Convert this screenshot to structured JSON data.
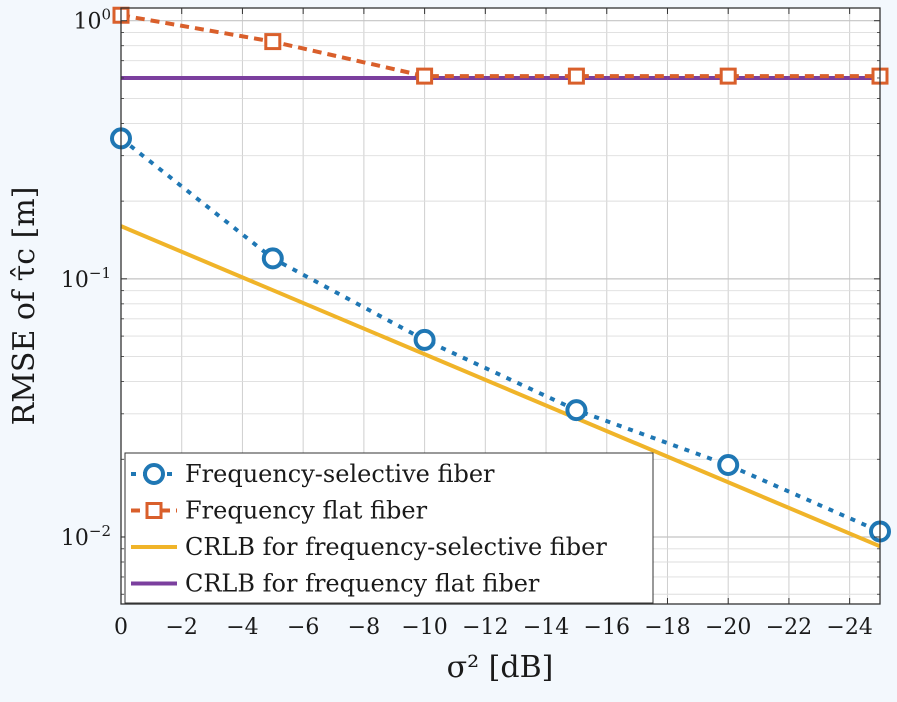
{
  "chart_data": {
    "type": "line",
    "title": "",
    "xlabel": "σ² [dB]",
    "ylabel": "RMSE of τ̂c [m]",
    "xlim": [
      0,
      -25
    ],
    "ylim": [
      0.0055,
      1.12
    ],
    "yscale": "log",
    "grid": true,
    "legend_position": "bottom-left",
    "x_ticks": [
      0,
      -2,
      -4,
      -6,
      -8,
      -10,
      -12,
      -14,
      -16,
      -18,
      -20,
      -22,
      -24
    ],
    "x_tick_labels": [
      "0",
      "−2",
      "−4",
      "−6",
      "−8",
      "−10",
      "−12",
      "−14",
      "−16",
      "−18",
      "−20",
      "−22",
      "−24"
    ],
    "y_ticks": [
      {
        "value": 1,
        "base": "10",
        "exp": "0"
      },
      {
        "value": 0.1,
        "base": "10",
        "exp": "−1"
      },
      {
        "value": 0.01,
        "base": "10",
        "exp": "−2"
      }
    ],
    "series": [
      {
        "name": "Frequency-selective fiber",
        "x": [
          0,
          -5,
          -10,
          -15,
          -20,
          -25
        ],
        "y": [
          0.35,
          0.12,
          0.058,
          0.031,
          0.019,
          0.0105
        ],
        "color": "#1f77b4",
        "style": "dotted",
        "marker": "circle"
      },
      {
        "name": "Frequency flat fiber",
        "x": [
          0,
          -5,
          -10,
          -15,
          -20,
          -25
        ],
        "y": [
          1.05,
          0.83,
          0.61,
          0.61,
          0.61,
          0.61
        ],
        "color": "#d95f2b",
        "style": "dashed",
        "marker": "square"
      },
      {
        "name": "CRLB for frequency-selective fiber",
        "x": [
          0,
          -25
        ],
        "y": [
          0.16,
          0.0092
        ],
        "color": "#f0b429",
        "style": "solid",
        "marker": "none"
      },
      {
        "name": "CRLB for frequency flat fiber",
        "x": [
          0,
          -25
        ],
        "y": [
          0.6,
          0.6
        ],
        "color": "#7b3f9e",
        "style": "solid",
        "marker": "none"
      }
    ]
  }
}
